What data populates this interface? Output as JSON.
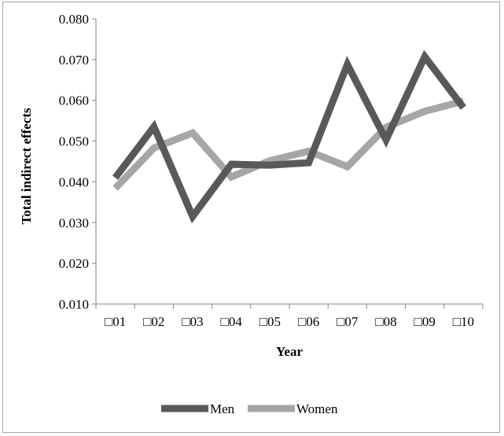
{
  "chart_data": {
    "type": "line",
    "title": "",
    "xlabel": "Year",
    "ylabel": "Total indirect effects",
    "categories": [
      "□01",
      "□02",
      "□03",
      "□04",
      "□05",
      "□06",
      "□07",
      "□08",
      "□09",
      "□10"
    ],
    "ylim": [
      0.01,
      0.08
    ],
    "yticks": [
      "0.010",
      "0.020",
      "0.030",
      "0.040",
      "0.050",
      "0.060",
      "0.070",
      "0.080"
    ],
    "grid": false,
    "legend_position": "bottom",
    "series": [
      {
        "name": "Men",
        "color": "#595959",
        "values": [
          0.041,
          0.0535,
          0.0315,
          0.0443,
          0.0441,
          0.0447,
          0.0688,
          0.0503,
          0.0707,
          0.0582
        ]
      },
      {
        "name": "Women",
        "color": "#a6a6a6",
        "values": [
          0.0384,
          0.0483,
          0.052,
          0.0412,
          0.0452,
          0.0475,
          0.0437,
          0.0534,
          0.0573,
          0.0598
        ]
      }
    ]
  }
}
